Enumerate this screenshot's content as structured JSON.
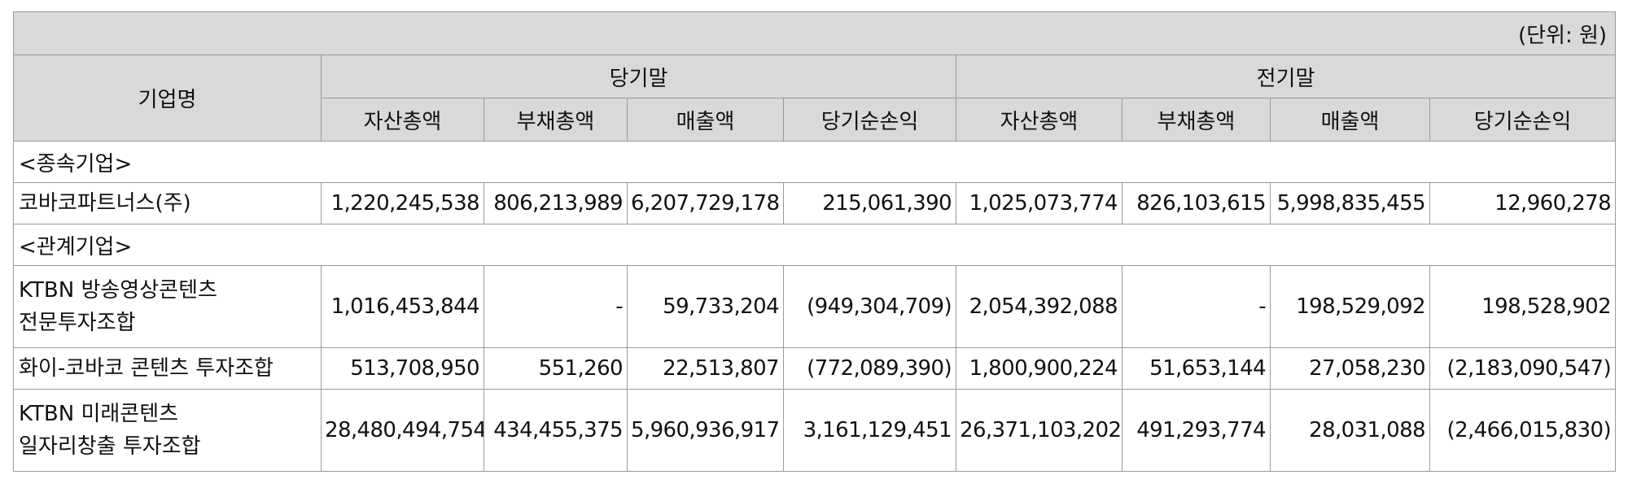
{
  "unit_label": "(단위: 원)",
  "header": {
    "company": "기업명",
    "current_period": "당기말",
    "prior_period": "전기말",
    "columns": [
      "자산총액",
      "부채총액",
      "매출액",
      "당기순손익",
      "자산총액",
      "부채총액",
      "매출액",
      "당기순손익"
    ]
  },
  "sections": [
    {
      "label": "<종속기업>",
      "rows": [
        {
          "name_lines": [
            "코바코파트너스(주)"
          ],
          "values": [
            "1,220,245,538",
            "806,213,989",
            "6,207,729,178",
            "215,061,390",
            "1,025,073,774",
            "826,103,615",
            "5,998,835,455",
            "12,960,278"
          ]
        }
      ]
    },
    {
      "label": "<관계기업>",
      "rows": [
        {
          "name_lines": [
            "KTBN 방송영상콘텐츠",
            "전문투자조합"
          ],
          "values": [
            "1,016,453,844",
            "-",
            "59,733,204",
            "(949,304,709)",
            "2,054,392,088",
            "-",
            "198,529,092",
            "198,528,902"
          ]
        },
        {
          "name_lines": [
            "화이-코바코 콘텐츠 투자조합"
          ],
          "values": [
            "513,708,950",
            "551,260",
            "22,513,807",
            "(772,089,390)",
            "1,800,900,224",
            "51,653,144",
            "27,058,230",
            "(2,183,090,547)"
          ]
        },
        {
          "name_lines": [
            "KTBN 미래콘텐츠",
            "일자리창출 투자조합"
          ],
          "values": [
            "28,480,494,754",
            "434,455,375",
            "5,960,936,917",
            "3,161,129,451",
            "26,371,103,202",
            "491,293,774",
            "28,031,088",
            "(2,466,015,830)"
          ]
        }
      ]
    }
  ]
}
